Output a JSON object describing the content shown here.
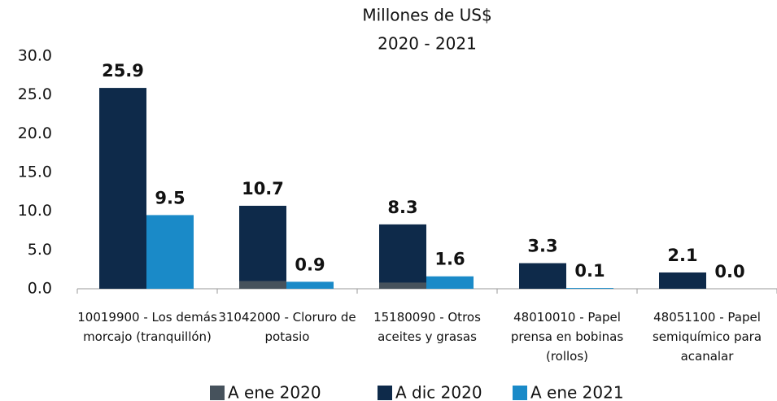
{
  "chart_data": {
    "type": "bar",
    "title": "Millones de US$",
    "subtitle": "2020 - 2021",
    "categories": [
      "10019900 - Los demás morcajo (tranquillón)",
      "31042000 - Cloruro de potasio",
      "15180090 - Otros aceites y grasas",
      "48010010 - Papel prensa en bobinas (rollos)",
      "48051100 - Papel semiquímico para acanalar"
    ],
    "series": [
      {
        "name": "A ene 2020",
        "color": "#46525c",
        "values": [
          0,
          1.0,
          0.8,
          0,
          0
        ]
      },
      {
        "name": "A dic 2020",
        "color": "#0e2a4a",
        "values": [
          25.9,
          10.7,
          8.3,
          3.3,
          2.1
        ],
        "value_labels": [
          "25.9",
          "10.7",
          "8.3",
          "3.3",
          "2.1"
        ]
      },
      {
        "name": "A ene 2021",
        "color": "#1a8ac8",
        "values": [
          9.5,
          0.9,
          1.6,
          0.1,
          0.0
        ],
        "value_labels": [
          "9.5",
          "0.9",
          "1.6",
          "0.1",
          "0.0"
        ]
      }
    ],
    "ylim": [
      0,
      30
    ],
    "yticks": [
      {
        "value": 0,
        "label": "0.0"
      },
      {
        "value": 5,
        "label": "5.0"
      },
      {
        "value": 10,
        "label": "10.0"
      },
      {
        "value": 15,
        "label": "15.0"
      },
      {
        "value": 20,
        "label": "20.0"
      },
      {
        "value": 25,
        "label": "25.0"
      },
      {
        "value": 30,
        "label": "30.0"
      }
    ],
    "legend": "bottom"
  }
}
